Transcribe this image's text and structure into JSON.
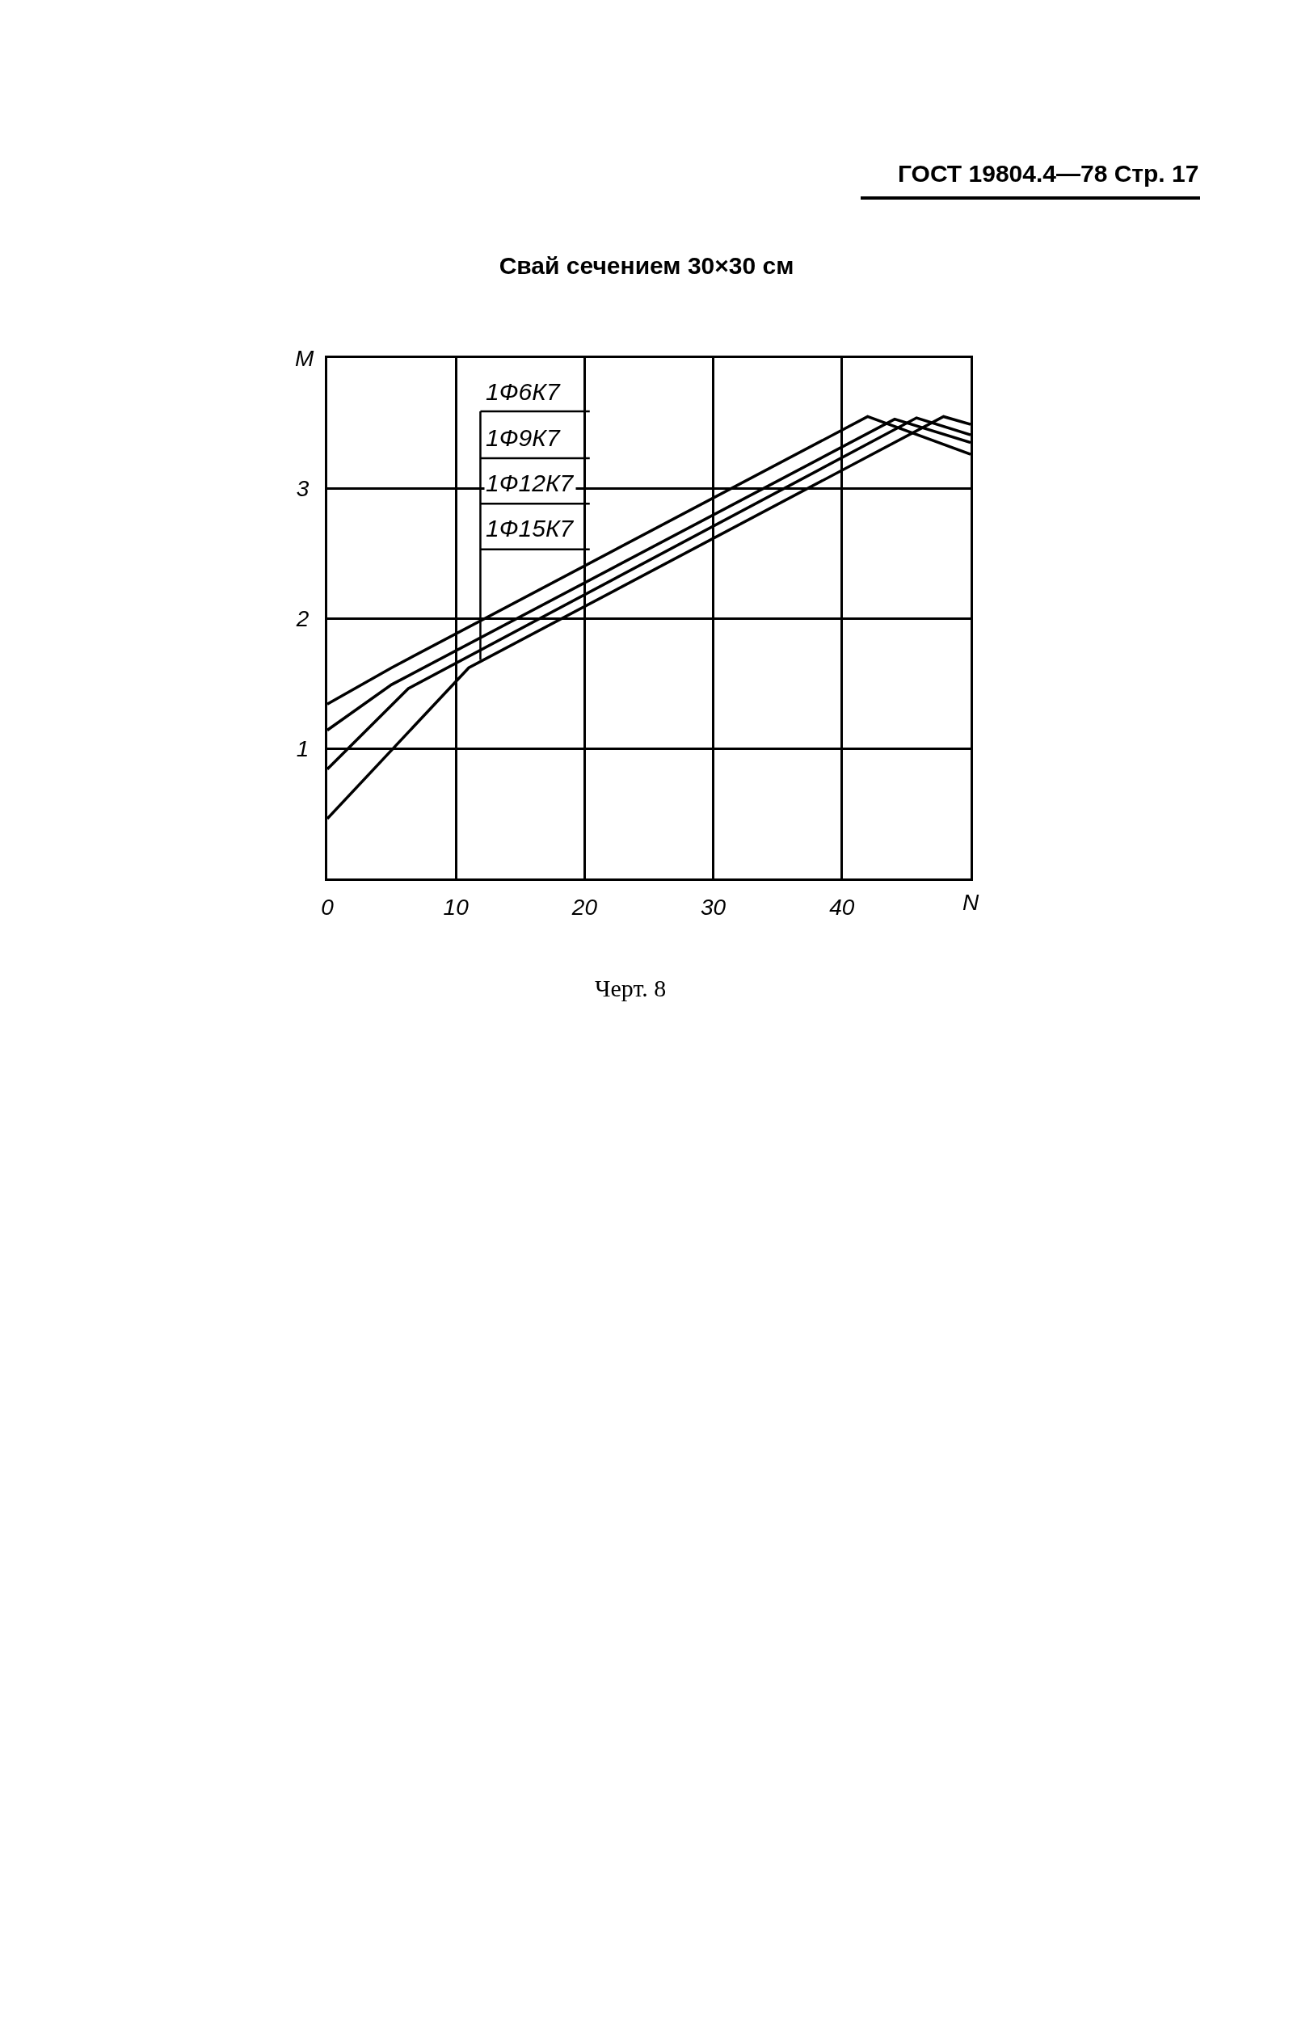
{
  "chart_data": {
    "type": "line",
    "title": "Свай сечением 30×30 см",
    "xlabel": "N",
    "ylabel": "M",
    "annotations": [
      "ГОСТ 19804.4—78 Стр. 17",
      "Черт. 8"
    ],
    "series": [
      {
        "name": "1Ф6К7",
        "color": "#000000",
        "x": [
          0,
          5,
          42,
          50
        ],
        "values": [
          1.34,
          1.62,
          3.55,
          3.26
        ]
      },
      {
        "name": "1Ф9К7",
        "color": "#000000",
        "x": [
          0,
          5,
          44.1,
          50
        ],
        "values": [
          1.14,
          1.49,
          3.53,
          3.35
        ]
      },
      {
        "name": "1Ф12К7",
        "color": "#000000",
        "x": [
          0,
          6.3,
          45.8,
          50
        ],
        "values": [
          0.84,
          1.46,
          3.54,
          3.41
        ]
      },
      {
        "name": "1Ф15К7",
        "color": "#000000",
        "x": [
          0,
          11,
          47.9,
          50
        ],
        "values": [
          0.46,
          1.62,
          3.55,
          3.49
        ]
      }
    ],
    "xlim": [
      0,
      50
    ],
    "ylim": [
      0,
      4
    ],
    "xticks": [
      0,
      10,
      20,
      30,
      40
    ],
    "yticks": [
      1,
      2,
      3
    ],
    "grid": true,
    "legend": "top left",
    "marker": "none",
    "line_style": "solid"
  }
}
